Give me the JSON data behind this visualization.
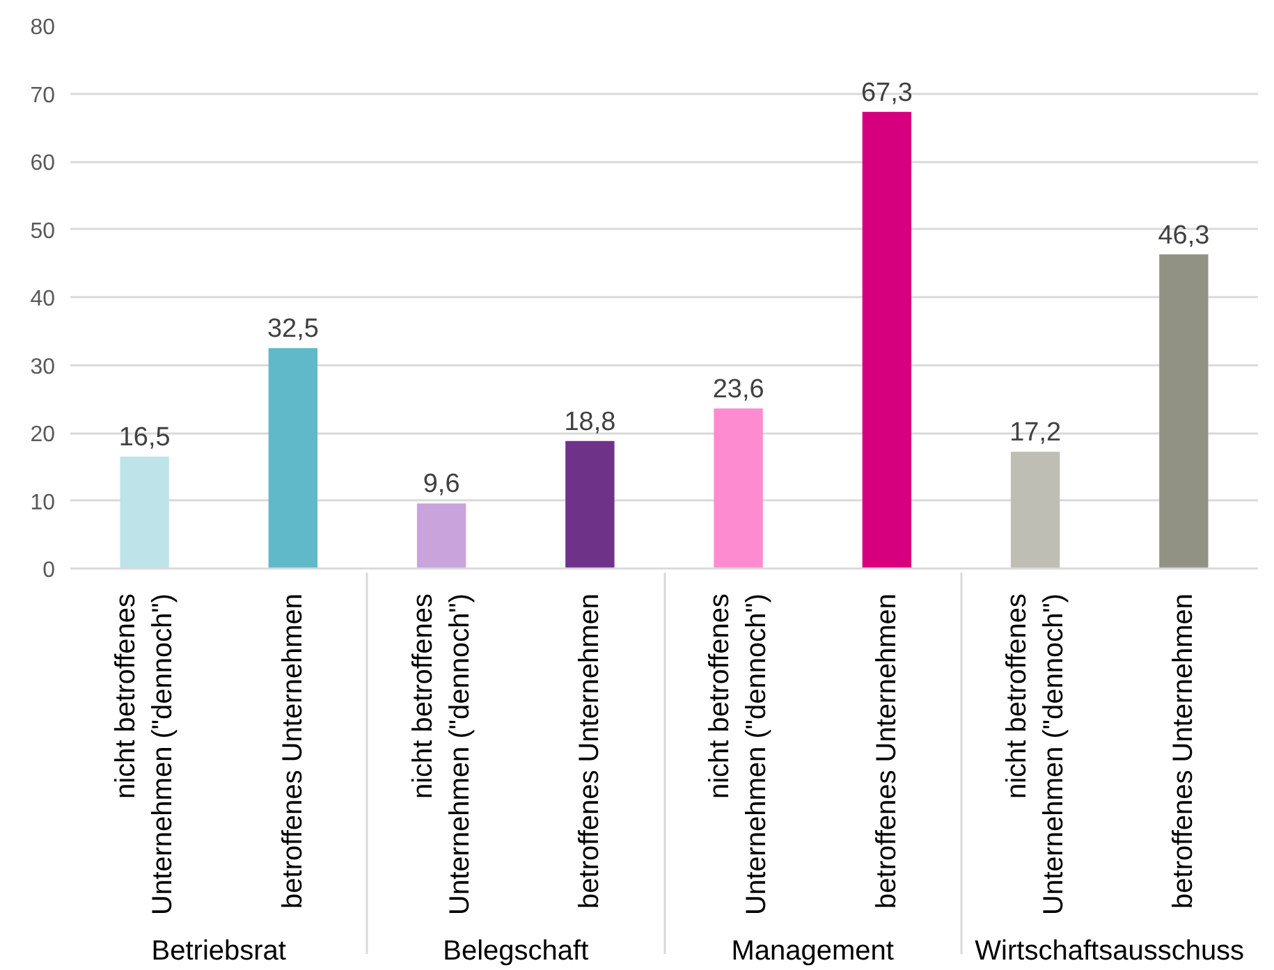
{
  "chart_data": {
    "type": "bar",
    "categories": [
      "nicht betroffenes Unternehmen (\"dennoch\")",
      "betroffenes Unternehmen",
      "nicht betroffenes Unternehmen (\"dennoch\")",
      "betroffenes Unternehmen",
      "nicht betroffenes Unternehmen (\"dennoch\")",
      "betroffenes Unternehmen",
      "nicht betroffenes Unternehmen (\"dennoch\")",
      "betroffenes Unternehmen"
    ],
    "values": [
      16.5,
      32.5,
      9.6,
      18.8,
      23.6,
      67.3,
      17.2,
      46.3
    ],
    "value_labels": [
      "16,5",
      "32,5",
      "9,6",
      "18,8",
      "23,6",
      "67,3",
      "17,2",
      "46,3"
    ],
    "colors": [
      "#bee4ea",
      "#5fb9c9",
      "#c9a3dc",
      "#6f3289",
      "#fd8bcf",
      "#d6007e",
      "#bebeb4",
      "#929284"
    ],
    "annotations": [
      "Betriebsrat",
      "Belegschaft",
      "Management",
      "Wirtschaftsausschuss"
    ],
    "ylim": [
      0,
      80
    ],
    "yticks": [
      0,
      10,
      20,
      30,
      40,
      50,
      60,
      70,
      80
    ],
    "grid": "y"
  }
}
